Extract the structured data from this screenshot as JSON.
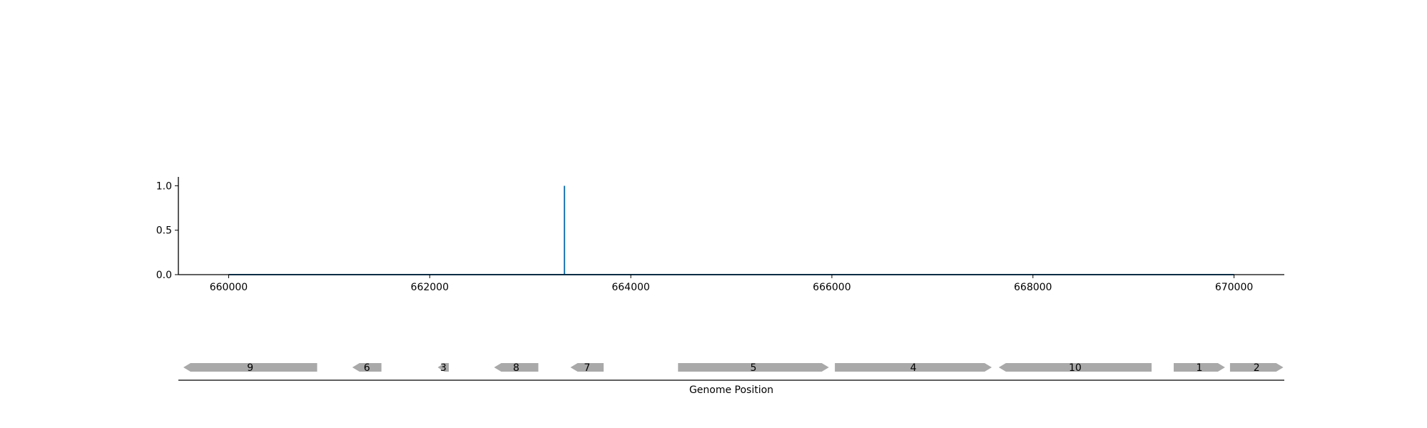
{
  "chart_data": [
    {
      "type": "line",
      "title": "",
      "xlabel": "",
      "ylabel": "",
      "xlim": [
        659500,
        670500
      ],
      "ylim": [
        0,
        1.1
      ],
      "x_ticks": [
        660000,
        662000,
        664000,
        666000,
        668000,
        670000
      ],
      "x_tick_labels": [
        "660000",
        "662000",
        "664000",
        "666000",
        "668000",
        "670000"
      ],
      "y_ticks": [
        0.0,
        0.5,
        1.0
      ],
      "y_tick_labels": [
        "0.0",
        "0.5",
        "1.0"
      ],
      "grid": false,
      "colors": {
        "series": "#1f77b4"
      },
      "series": [
        {
          "x": [
            660000,
            663340,
            663340,
            663340,
            670000
          ],
          "y": [
            0,
            0,
            1.0,
            0,
            0
          ]
        }
      ]
    },
    {
      "type": "gene-track",
      "xlabel": "Genome Position",
      "xlim": [
        659500,
        670500
      ],
      "colors": {
        "gene": "#a9a9a9"
      },
      "genes": [
        {
          "label": "9",
          "start": 659550,
          "end": 660880,
          "strand": "-"
        },
        {
          "label": "6",
          "start": 661230,
          "end": 661520,
          "strand": "-"
        },
        {
          "label": "3",
          "start": 662080,
          "end": 662190,
          "strand": "-"
        },
        {
          "label": "8",
          "start": 662640,
          "end": 663080,
          "strand": "-"
        },
        {
          "label": "7",
          "start": 663400,
          "end": 663730,
          "strand": "-"
        },
        {
          "label": "5",
          "start": 664470,
          "end": 665970,
          "strand": "+"
        },
        {
          "label": "4",
          "start": 666030,
          "end": 667590,
          "strand": "+"
        },
        {
          "label": "10",
          "start": 667660,
          "end": 669180,
          "strand": "-"
        },
        {
          "label": "1",
          "start": 669400,
          "end": 669910,
          "strand": "+"
        },
        {
          "label": "2",
          "start": 669960,
          "end": 670490,
          "strand": "+"
        }
      ]
    }
  ]
}
